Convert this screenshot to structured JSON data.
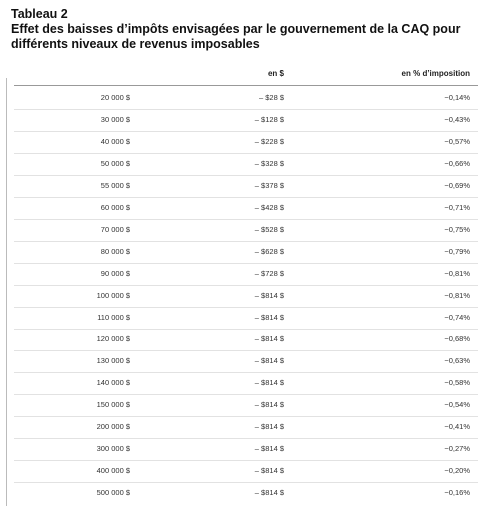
{
  "header": {
    "label": "Tableau 2",
    "title": "Effet des baisses d’impôts envisagées par le gouvernement de la CAQ pour différents niveaux de revenus imposables"
  },
  "table": {
    "columns": [
      "en $",
      "en % d’imposition"
    ],
    "rows": [
      [
        "20 000 $",
        "– $28 $",
        "−0,14%"
      ],
      [
        "30 000 $",
        "– $128 $",
        "−0,43%"
      ],
      [
        "40 000 $",
        "– $228 $",
        "−0,57%"
      ],
      [
        "50 000 $",
        "– $328 $",
        "−0,66%"
      ],
      [
        "55 000 $",
        "– $378 $",
        "−0,69%"
      ],
      [
        "60 000 $",
        "– $428 $",
        "−0,71%"
      ],
      [
        "70 000 $",
        "– $528 $",
        "−0,75%"
      ],
      [
        "80 000 $",
        "– $628 $",
        "−0,79%"
      ],
      [
        "90 000 $",
        "– $728 $",
        "−0,81%"
      ],
      [
        "100 000 $",
        "– $814 $",
        "−0,81%"
      ],
      [
        "110 000 $",
        "– $814 $",
        "−0,74%"
      ],
      [
        "120 000 $",
        "– $814 $",
        "−0,68%"
      ],
      [
        "130 000 $",
        "– $814 $",
        "−0,63%"
      ],
      [
        "140 000 $",
        "– $814 $",
        "−0,58%"
      ],
      [
        "150 000 $",
        "– $814 $",
        "−0,54%"
      ],
      [
        "200 000 $",
        "– $814 $",
        "−0,41%"
      ],
      [
        "300 000 $",
        "– $814 $",
        "−0,27%"
      ],
      [
        "400 000 $",
        "– $814 $",
        "−0,20%"
      ],
      [
        "500 000 $",
        "– $814 $",
        "−0,16%"
      ]
    ]
  }
}
